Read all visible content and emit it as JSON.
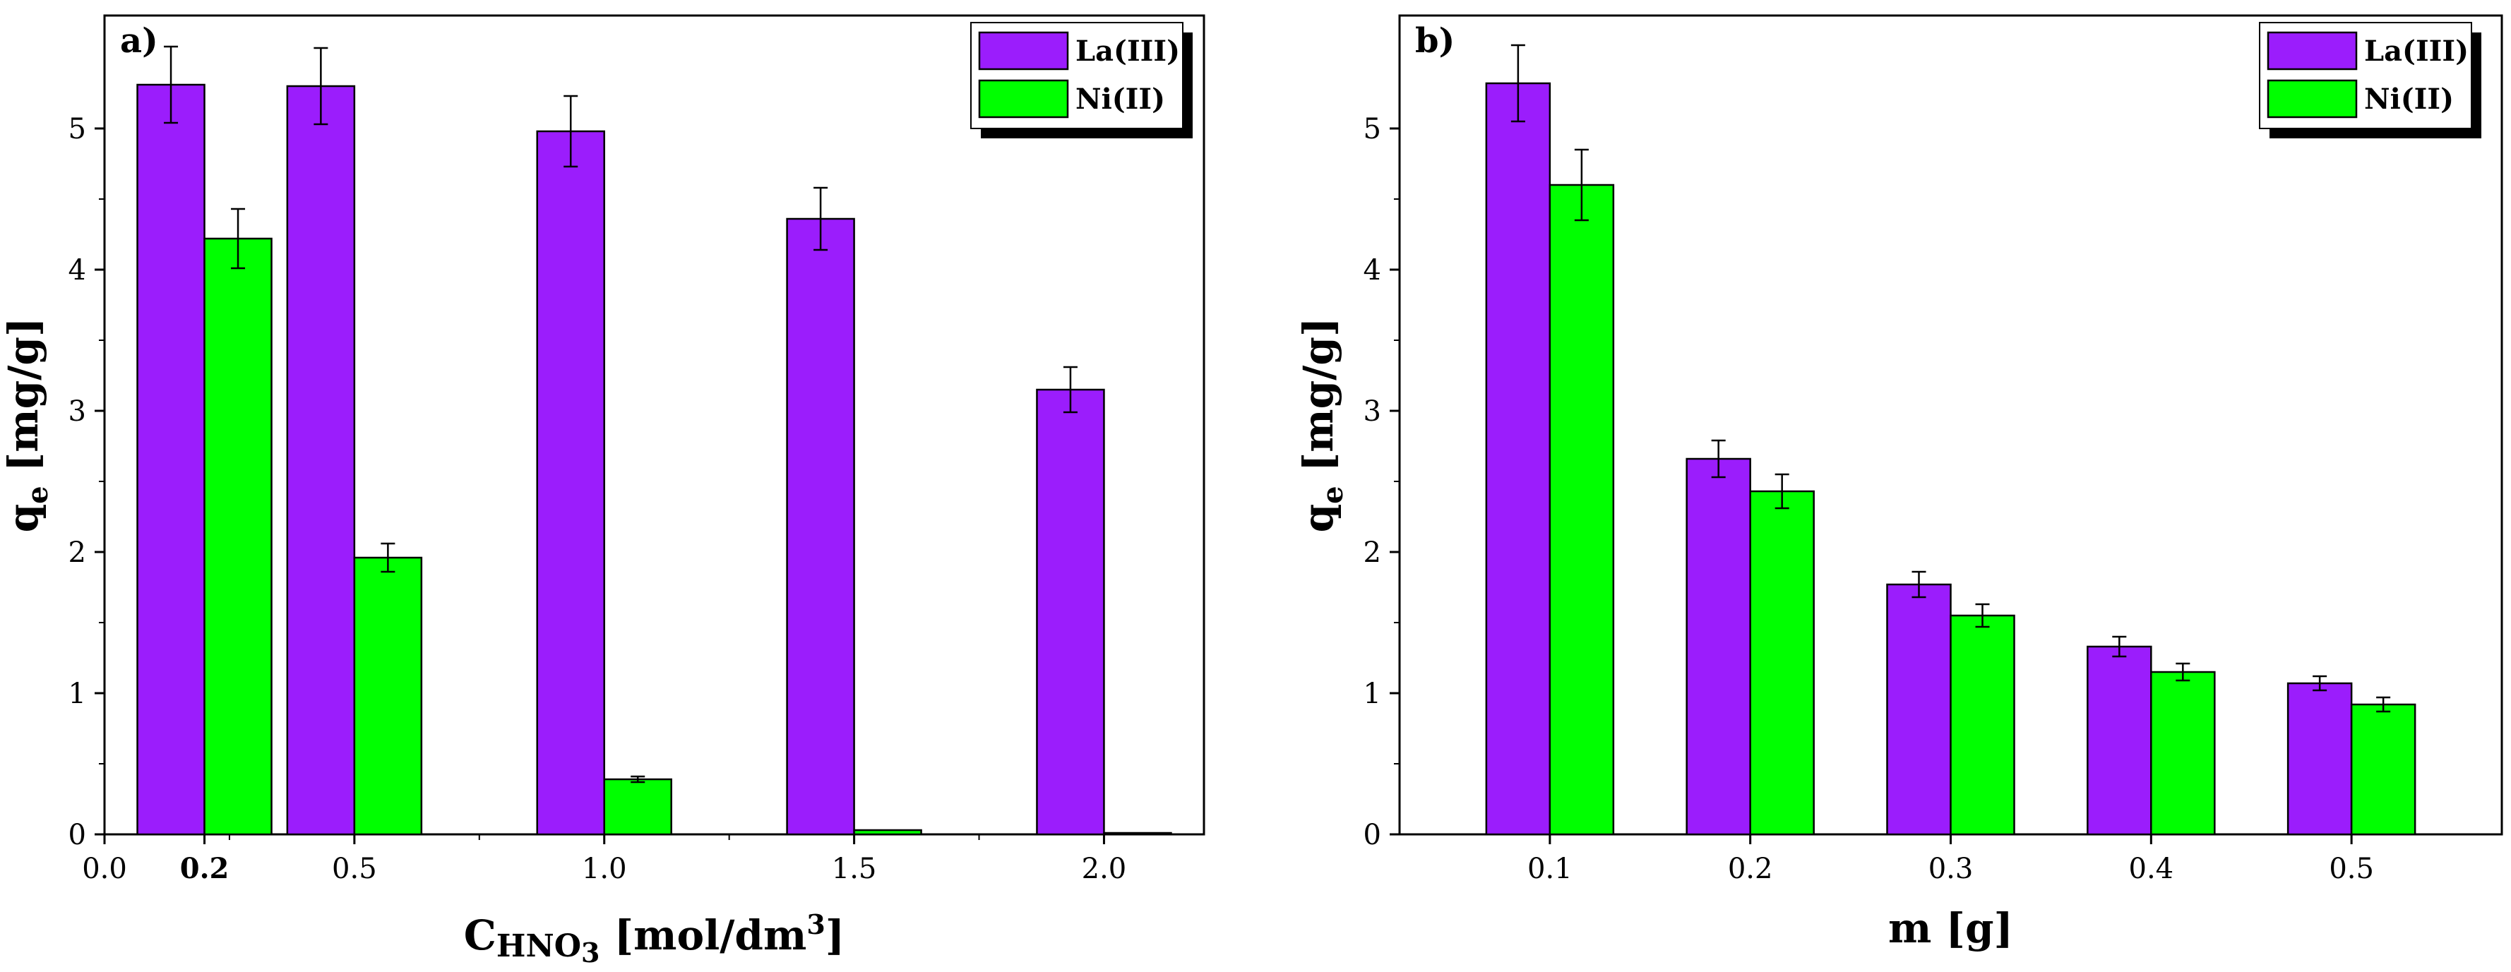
{
  "chart_data": [
    {
      "panel": "a)",
      "type": "bar",
      "xlabel_main": "C",
      "xlabel_sub": "HNO",
      "xlabel_sub_digit": "3",
      "xlabel_unit_prefix": " [mol/dm",
      "xlabel_unit_sup": "3",
      "xlabel_unit_suffix": "]",
      "ylabel_main": "q",
      "ylabel_sub": "e",
      "ylabel_unit": " [mg/g]",
      "xlim": [
        0,
        2.2
      ],
      "ylim": [
        0,
        5.8
      ],
      "x_ticks": [
        0.0,
        0.5,
        1.0,
        1.5,
        2.0
      ],
      "x_tick_labels": [
        "0.0",
        "0.5",
        "1.0",
        "1.5",
        "2.0"
      ],
      "extra_tick_label": "0.2",
      "y_ticks": [
        0,
        1,
        2,
        3,
        4,
        5
      ],
      "y_tick_labels": [
        "0",
        "1",
        "2",
        "3",
        "4",
        "5"
      ],
      "categories": [
        0.2,
        0.5,
        1.0,
        1.5,
        2.0
      ],
      "series": [
        {
          "name": "La(III)",
          "color": "#9b1dfc",
          "values": [
            5.31,
            5.3,
            4.98,
            4.36,
            3.15
          ],
          "errors": [
            0.27,
            0.27,
            0.25,
            0.22,
            0.16
          ]
        },
        {
          "name": "Ni(II)",
          "color": "#00ff00",
          "values": [
            4.22,
            1.96,
            0.39,
            0.03,
            0.01
          ],
          "errors": [
            0.21,
            0.1,
            0.02,
            0.0,
            0.0
          ]
        }
      ],
      "legend": [
        "La(III)",
        "Ni(II)"
      ]
    },
    {
      "panel": "b)",
      "type": "bar",
      "xlabel": "m [g]",
      "ylabel_main": "q",
      "ylabel_sub": "e",
      "ylabel_unit": " [mg/g]",
      "ylim": [
        0,
        5.8
      ],
      "y_ticks": [
        0,
        1,
        2,
        3,
        4,
        5
      ],
      "y_tick_labels": [
        "0",
        "1",
        "2",
        "3",
        "4",
        "5"
      ],
      "categories": [
        "0.1",
        "0.2",
        "0.3",
        "0.4",
        "0.5"
      ],
      "series": [
        {
          "name": "La(III)",
          "color": "#9b1dfc",
          "values": [
            5.32,
            2.66,
            1.77,
            1.33,
            1.07
          ],
          "errors": [
            0.27,
            0.13,
            0.09,
            0.07,
            0.05
          ]
        },
        {
          "name": "Ni(II)",
          "color": "#00ff00",
          "values": [
            4.6,
            2.43,
            1.55,
            1.15,
            0.92
          ],
          "errors": [
            0.25,
            0.12,
            0.08,
            0.06,
            0.05
          ]
        }
      ],
      "legend": [
        "La(III)",
        "Ni(II)"
      ]
    }
  ]
}
